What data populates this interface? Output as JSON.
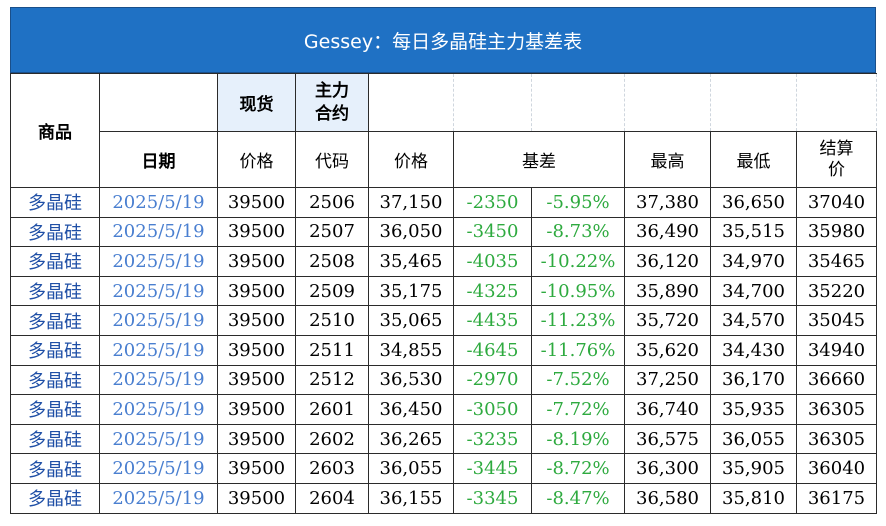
{
  "title": "Gessey：每日多晶硅主力基差表",
  "header": {
    "product": "商品",
    "spot": "现货",
    "main_contract": "主力\n合约",
    "date": "日期",
    "price": "价格",
    "code": "代码",
    "contract_price": "价格",
    "basis": "基差",
    "high": "最高",
    "low": "最低",
    "settle": "结算\n价"
  },
  "rows": [
    {
      "product": "多晶硅",
      "date": "2025/5/19",
      "spot": "39500",
      "code": "2506",
      "price": "37,150",
      "basis": "-2350",
      "basis_pct": "-5.95%",
      "high": "37,380",
      "low": "36,650",
      "settle": "37040"
    },
    {
      "product": "多晶硅",
      "date": "2025/5/19",
      "spot": "39500",
      "code": "2507",
      "price": "36,050",
      "basis": "-3450",
      "basis_pct": "-8.73%",
      "high": "36,490",
      "low": "35,515",
      "settle": "35980"
    },
    {
      "product": "多晶硅",
      "date": "2025/5/19",
      "spot": "39500",
      "code": "2508",
      "price": "35,465",
      "basis": "-4035",
      "basis_pct": "-10.22%",
      "high": "36,120",
      "low": "34,970",
      "settle": "35465"
    },
    {
      "product": "多晶硅",
      "date": "2025/5/19",
      "spot": "39500",
      "code": "2509",
      "price": "35,175",
      "basis": "-4325",
      "basis_pct": "-10.95%",
      "high": "35,890",
      "low": "34,700",
      "settle": "35220"
    },
    {
      "product": "多晶硅",
      "date": "2025/5/19",
      "spot": "39500",
      "code": "2510",
      "price": "35,065",
      "basis": "-4435",
      "basis_pct": "-11.23%",
      "high": "35,720",
      "low": "34,570",
      "settle": "35045"
    },
    {
      "product": "多晶硅",
      "date": "2025/5/19",
      "spot": "39500",
      "code": "2511",
      "price": "34,855",
      "basis": "-4645",
      "basis_pct": "-11.76%",
      "high": "35,620",
      "low": "34,430",
      "settle": "34940"
    },
    {
      "product": "多晶硅",
      "date": "2025/5/19",
      "spot": "39500",
      "code": "2512",
      "price": "36,530",
      "basis": "-2970",
      "basis_pct": "-7.52%",
      "high": "37,250",
      "low": "36,170",
      "settle": "36660"
    },
    {
      "product": "多晶硅",
      "date": "2025/5/19",
      "spot": "39500",
      "code": "2601",
      "price": "36,450",
      "basis": "-3050",
      "basis_pct": "-7.72%",
      "high": "36,740",
      "low": "35,935",
      "settle": "36305"
    },
    {
      "product": "多晶硅",
      "date": "2025/5/19",
      "spot": "39500",
      "code": "2602",
      "price": "36,265",
      "basis": "-3235",
      "basis_pct": "-8.19%",
      "high": "36,575",
      "low": "36,055",
      "settle": "36305"
    },
    {
      "product": "多晶硅",
      "date": "2025/5/19",
      "spot": "39500",
      "code": "2603",
      "price": "36,055",
      "basis": "-3445",
      "basis_pct": "-8.72%",
      "high": "36,300",
      "low": "35,905",
      "settle": "36040"
    },
    {
      "product": "多晶硅",
      "date": "2025/5/19",
      "spot": "39500",
      "code": "2604",
      "price": "36,155",
      "basis": "-3345",
      "basis_pct": "-8.47%",
      "high": "36,580",
      "low": "35,810",
      "settle": "36175"
    }
  ],
  "colors": {
    "title_bg": "#1f71c4",
    "header_bg": "#e6f0fb",
    "product_text": "#1f4fa6",
    "date_text": "#4a7fd0",
    "negative_text": "#2eaa3f"
  }
}
